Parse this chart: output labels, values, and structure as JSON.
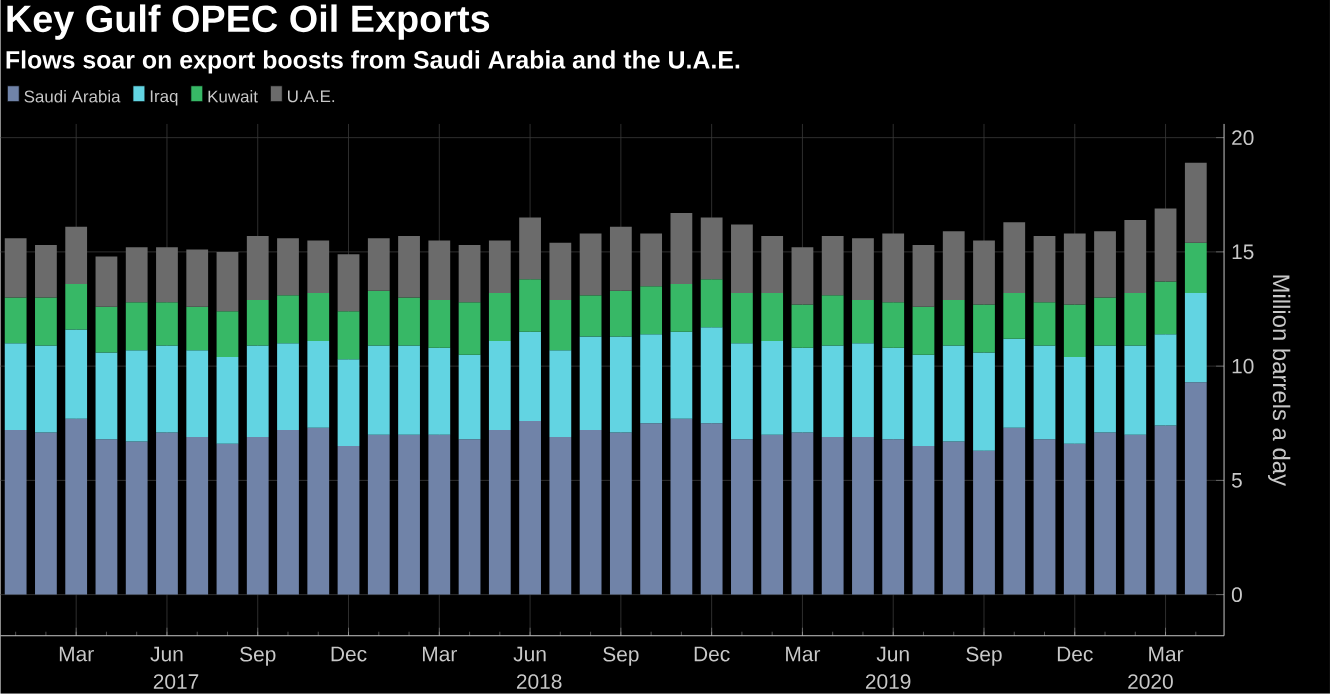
{
  "chart_data": {
    "type": "bar",
    "stacked": true,
    "title": "Key Gulf OPEC Oil Exports",
    "subtitle": "Flows soar on export boosts from Saudi Arabia and the U.A.E.",
    "ylabel": "Million barrels a day",
    "x": [
      "2017-01",
      "2017-02",
      "2017-03",
      "2017-04",
      "2017-05",
      "2017-06",
      "2017-07",
      "2017-08",
      "2017-09",
      "2017-10",
      "2017-11",
      "2017-12",
      "2018-01",
      "2018-02",
      "2018-03",
      "2018-04",
      "2018-05",
      "2018-06",
      "2018-07",
      "2018-08",
      "2018-09",
      "2018-10",
      "2018-11",
      "2018-12",
      "2019-01",
      "2019-02",
      "2019-03",
      "2019-04",
      "2019-05",
      "2019-06",
      "2019-07",
      "2019-08",
      "2019-09",
      "2019-10",
      "2019-11",
      "2019-12",
      "2020-01",
      "2020-02",
      "2020-03",
      "2020-04"
    ],
    "series": [
      {
        "name": "Saudi Arabia",
        "color": "#7083a8",
        "values": [
          7.2,
          7.1,
          7.7,
          6.8,
          6.7,
          7.1,
          6.9,
          6.6,
          6.9,
          7.2,
          7.3,
          6.5,
          7.0,
          7.0,
          7.0,
          6.8,
          7.2,
          7.6,
          6.9,
          7.2,
          7.1,
          7.5,
          7.7,
          7.5,
          6.8,
          7.0,
          7.1,
          6.9,
          6.9,
          6.8,
          6.5,
          6.7,
          6.3,
          7.3,
          6.8,
          6.6,
          7.1,
          7.0,
          7.4,
          9.3
        ]
      },
      {
        "name": "Iraq",
        "color": "#62d4e2",
        "values": [
          3.8,
          3.8,
          3.9,
          3.8,
          4.0,
          3.8,
          3.8,
          3.8,
          4.0,
          3.8,
          3.8,
          3.8,
          3.9,
          3.9,
          3.8,
          3.7,
          3.9,
          3.9,
          3.8,
          4.1,
          4.2,
          3.9,
          3.8,
          4.2,
          4.2,
          4.1,
          3.7,
          4.0,
          4.1,
          4.0,
          4.0,
          4.2,
          4.3,
          3.9,
          4.1,
          3.8,
          3.8,
          3.9,
          4.0,
          3.9
        ]
      },
      {
        "name": "Kuwait",
        "color": "#37b866",
        "values": [
          2.0,
          2.1,
          2.0,
          2.0,
          2.1,
          1.9,
          1.9,
          2.0,
          2.0,
          2.1,
          2.1,
          2.1,
          2.4,
          2.1,
          2.1,
          2.3,
          2.1,
          2.3,
          2.2,
          1.8,
          2.0,
          2.1,
          2.1,
          2.1,
          2.2,
          2.1,
          1.9,
          2.2,
          1.9,
          2.0,
          2.1,
          2.0,
          2.1,
          2.0,
          1.9,
          2.3,
          2.1,
          2.3,
          2.3,
          2.2
        ]
      },
      {
        "name": "U.A.E.",
        "color": "#6b6b6b",
        "values": [
          2.6,
          2.3,
          2.5,
          2.2,
          2.4,
          2.4,
          2.5,
          2.6,
          2.8,
          2.5,
          2.3,
          2.5,
          2.3,
          2.7,
          2.6,
          2.5,
          2.3,
          2.7,
          2.5,
          2.7,
          2.8,
          2.3,
          3.1,
          2.7,
          3.0,
          2.5,
          2.5,
          2.6,
          2.7,
          3.0,
          2.7,
          3.0,
          2.8,
          3.1,
          2.9,
          3.1,
          2.9,
          3.2,
          3.2,
          3.5
        ]
      }
    ],
    "xlim": [
      "2016-12-16",
      "2020-04-29"
    ],
    "xticks": [
      {
        "value": "2017-03",
        "label": "Mar"
      },
      {
        "value": "2017-06",
        "label": "Jun"
      },
      {
        "value": "2017-09",
        "label": "Sep"
      },
      {
        "value": "2017-12",
        "label": "Dec"
      },
      {
        "value": "2018-03",
        "label": "Mar"
      },
      {
        "value": "2018-06",
        "label": "Jun"
      },
      {
        "value": "2018-09",
        "label": "Sep"
      },
      {
        "value": "2018-12",
        "label": "Dec"
      },
      {
        "value": "2019-03",
        "label": "Mar"
      },
      {
        "value": "2019-06",
        "label": "Jun"
      },
      {
        "value": "2019-09",
        "label": "Sep"
      },
      {
        "value": "2019-12",
        "label": "Dec"
      },
      {
        "value": "2020-03",
        "label": "Mar"
      }
    ],
    "ylim": [
      -1.8,
      20.6
    ],
    "yticks": [
      0,
      5,
      10,
      15,
      20
    ],
    "x2lim": [
      "2016-12-16",
      "2020-04-29"
    ],
    "x2ticks": [
      {
        "value": "2017-06-10",
        "label": "2017"
      },
      {
        "value": "2018-06-10",
        "label": "2018"
      },
      {
        "value": "2019-05-26",
        "label": "2019"
      },
      {
        "value": "2020-02-16",
        "label": "2020"
      }
    ],
    "grid": true,
    "legend": "top left"
  }
}
